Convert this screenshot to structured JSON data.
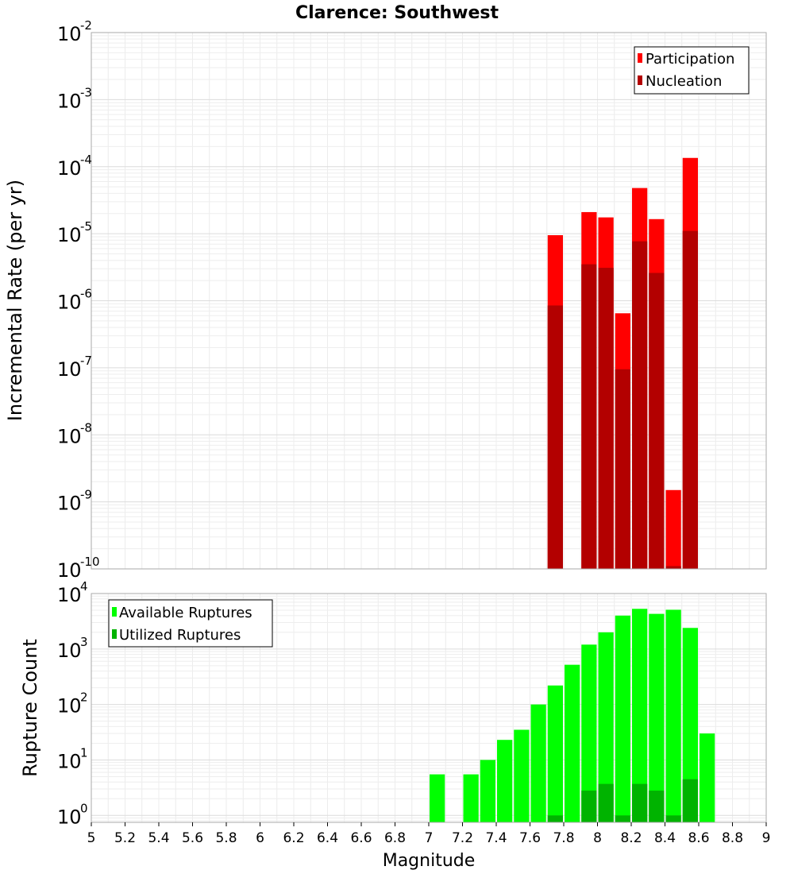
{
  "chart_data": [
    {
      "type": "bar",
      "title": "Clarence: Southwest",
      "ylabel": "Incremental Rate (per yr)",
      "xlabel": "",
      "xlim": [
        5,
        9
      ],
      "ylim": [
        1e-10,
        0.01
      ],
      "yscale": "log",
      "ytick_exponents": [
        "-2",
        "-3",
        "-4",
        "-5",
        "-6",
        "-7",
        "-8",
        "-9",
        "-10"
      ],
      "legend_position": "top-right",
      "grid": true,
      "series": [
        {
          "name": "Participation",
          "color": "#ff0000",
          "x": [
            7.75,
            7.95,
            8.05,
            8.15,
            8.25,
            8.35,
            8.45,
            8.55
          ],
          "values": [
            9.5e-06,
            2.1e-05,
            1.75e-05,
            6.5e-07,
            4.8e-05,
            1.65e-05,
            1.5e-09,
            0.000135
          ]
        },
        {
          "name": "Nucleation",
          "color": "#b30000",
          "x": [
            7.75,
            7.95,
            8.05,
            8.15,
            8.25,
            8.35,
            8.45,
            8.55
          ],
          "values": [
            8.5e-07,
            3.5e-06,
            3.1e-06,
            9.5e-08,
            7.7e-06,
            2.6e-06,
            1.1e-10,
            1.1e-05
          ]
        }
      ]
    },
    {
      "type": "bar",
      "title": "",
      "ylabel": "Rupture Count",
      "xlabel": "Magnitude",
      "xlim": [
        5,
        9
      ],
      "ylim": [
        0.75,
        10000
      ],
      "yscale": "log",
      "ytick_exponents": [
        "4",
        "3",
        "2",
        "1",
        "0"
      ],
      "xticks": [
        "5",
        "5.2",
        "5.4",
        "5.6",
        "5.8",
        "6",
        "6.2",
        "6.4",
        "6.6",
        "6.8",
        "7",
        "7.2",
        "7.4",
        "7.6",
        "7.8",
        "8",
        "8.2",
        "8.4",
        "8.6",
        "8.8",
        "9"
      ],
      "legend_position": "top-left",
      "grid": true,
      "series": [
        {
          "name": "Available Ruptures",
          "color": "#00ff00",
          "x": [
            7.05,
            7.25,
            7.35,
            7.45,
            7.55,
            7.65,
            7.75,
            7.85,
            7.95,
            8.05,
            8.15,
            8.25,
            8.35,
            8.45,
            8.55,
            8.65
          ],
          "values": [
            5.5,
            5.5,
            10,
            23,
            35,
            100,
            220,
            520,
            1200,
            2000,
            4000,
            5300,
            4300,
            5100,
            2400,
            30
          ]
        },
        {
          "name": "Utilized Ruptures",
          "color": "#00b300",
          "x": [
            7.75,
            7.95,
            8.05,
            8.15,
            8.25,
            8.35,
            8.45,
            8.55
          ],
          "values": [
            1,
            2.8,
            3.7,
            1,
            3.7,
            2.8,
            1,
            4.5
          ]
        }
      ]
    }
  ]
}
